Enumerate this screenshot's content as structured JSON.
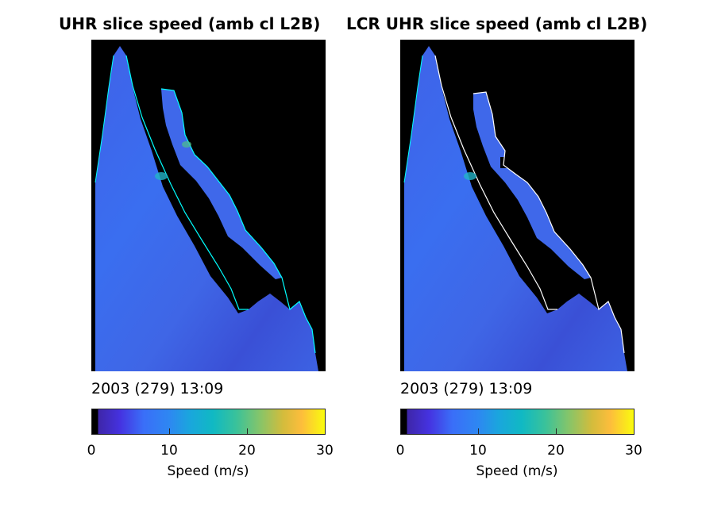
{
  "figure": {
    "panels": [
      {
        "title": "UHR slice speed (amb cl L2B)",
        "timestamp": "2003 (279) 13:09",
        "colorbar_label": "Speed (m/s)",
        "ticks": [
          "0",
          "10",
          "20",
          "30"
        ]
      },
      {
        "title": "LCR UHR slice speed (amb cl L2B)",
        "timestamp": "2003 (279) 13:09",
        "colorbar_label": "Speed (m/s)",
        "ticks": [
          "0",
          "10",
          "20",
          "30"
        ]
      }
    ]
  },
  "chart_data": [
    {
      "type": "heatmap",
      "title": "UHR slice speed (amb cl L2B)",
      "annotation": "2003 (279) 13:09",
      "colorbar": {
        "label": "Speed (m/s)",
        "range": [
          0,
          30
        ],
        "ticks": [
          0,
          10,
          20,
          30
        ],
        "colormap": "parula",
        "zero_color": "#000000"
      },
      "dominant_speed_range": [
        4,
        10
      ],
      "land_color": "#000000",
      "coast_color": "#00ffff"
    },
    {
      "type": "heatmap",
      "title": "LCR UHR slice speed (amb cl L2B)",
      "annotation": "2003 (279) 13:09",
      "colorbar": {
        "label": "Speed (m/s)",
        "range": [
          0,
          30
        ],
        "ticks": [
          0,
          10,
          20,
          30
        ],
        "colormap": "parula",
        "zero_color": "#000000"
      },
      "dominant_speed_range": [
        4,
        10
      ],
      "land_color": "#000000",
      "coast_color": "#ffffff"
    }
  ]
}
